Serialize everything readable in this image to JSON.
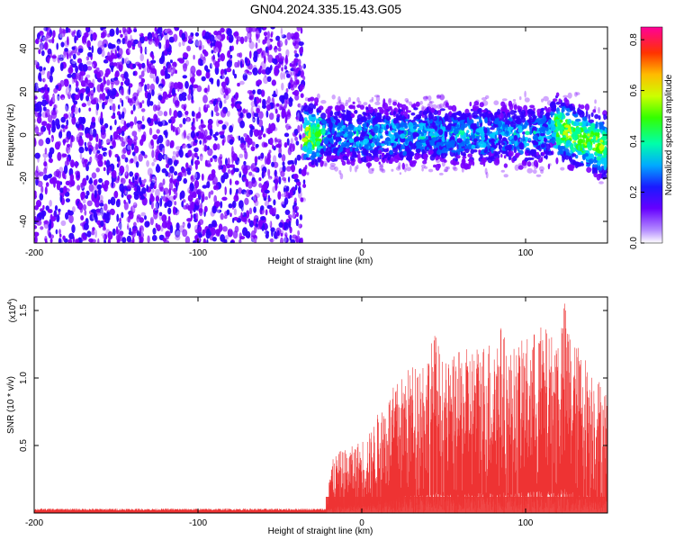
{
  "title": "GN04.2024.335.15.43.G05",
  "chart_data": [
    {
      "type": "heatmap",
      "xlabel": "Height of straight line (km)",
      "ylabel": "Frequency (Hz)",
      "xlim": [
        -200,
        150
      ],
      "ylim": [
        -50,
        50
      ],
      "xticks": [
        -200,
        -100,
        0,
        100
      ],
      "yticks": [
        -40,
        -20,
        0,
        20,
        40
      ],
      "grid": false,
      "colorbar": {
        "label": "Normalized spectral amplitude",
        "range": [
          0.0,
          0.85
        ],
        "ticks": [
          "0.0",
          "0.2",
          "0.4",
          "0.6",
          "0.8"
        ],
        "colormap": [
          "#ffffff",
          "#7a00ff",
          "#3300ff",
          "#0066ff",
          "#00ccff",
          "#00ff99",
          "#33ff00",
          "#ccff00",
          "#ffcc00",
          "#ff6600",
          "#ff0033",
          "#ff00aa"
        ]
      },
      "regions": [
        {
          "x_range": [
            -200,
            -35
          ],
          "freq_range": [
            -50,
            50
          ],
          "pattern": "broadband noise"
        },
        {
          "x_range": [
            -35,
            150
          ],
          "freq_center": 0,
          "freq_halfwidth": 15,
          "pattern": "narrow band near 0 Hz, strongest near x -30 and 120 to 150"
        }
      ]
    },
    {
      "type": "area",
      "xlabel": "Height of straight line (km)",
      "ylabel": "SNR (10 * v/v)",
      "multiplier": "(x10^4)",
      "xlim": [
        -200,
        150
      ],
      "ylim": [
        0,
        1.6
      ],
      "xticks": [
        -200,
        -100,
        0,
        100
      ],
      "yticks": [
        "0.5",
        "1.0",
        "1.5"
      ],
      "grid": false,
      "series": [
        {
          "color": "#ee3333",
          "envelope": [
            [
              -200,
              0.03
            ],
            [
              -150,
              0.03
            ],
            [
              -100,
              0.03
            ],
            [
              -50,
              0.03
            ],
            [
              -22,
              0.03
            ],
            [
              -20,
              0.35
            ],
            [
              -15,
              0.45
            ],
            [
              -5,
              0.5
            ],
            [
              0,
              0.55
            ],
            [
              5,
              0.6
            ],
            [
              10,
              0.75
            ],
            [
              15,
              0.85
            ],
            [
              20,
              0.95
            ],
            [
              30,
              1.1
            ],
            [
              40,
              1.2
            ],
            [
              45,
              1.35
            ],
            [
              50,
              1.1
            ],
            [
              60,
              1.2
            ],
            [
              70,
              1.25
            ],
            [
              80,
              1.3
            ],
            [
              85,
              1.4
            ],
            [
              90,
              1.2
            ],
            [
              100,
              1.3
            ],
            [
              110,
              1.4
            ],
            [
              118,
              1.3
            ],
            [
              124,
              1.58
            ],
            [
              128,
              1.3
            ],
            [
              135,
              1.2
            ],
            [
              140,
              1.1
            ],
            [
              145,
              1.0
            ],
            [
              150,
              0.9
            ]
          ]
        }
      ]
    }
  ]
}
